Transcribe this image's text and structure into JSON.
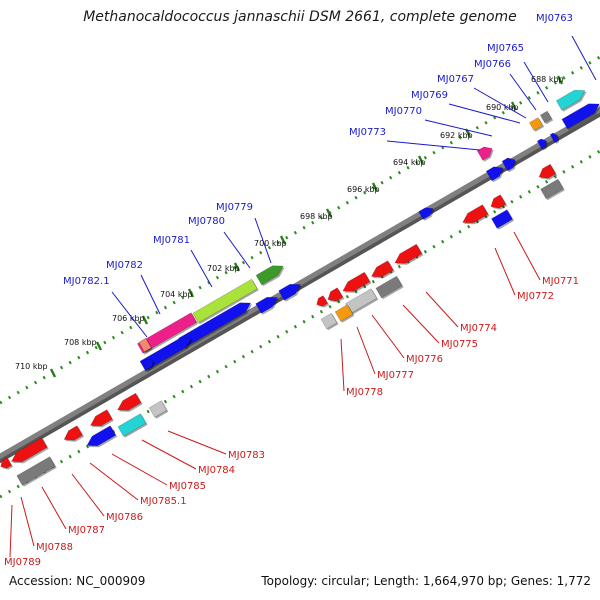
{
  "title": "Methanocaldococcus jannaschii DSM 2661, complete genome",
  "footer": {
    "accession": "Accession: NC_000909",
    "topology": "Topology: circular; Length: 1,664,970 bp; Genes: 1,772"
  },
  "colors": {
    "backbone": "#808080",
    "ruler_tick": "#2e8b22",
    "top_label": "#1a1acc",
    "bottom_label": "#cc1a1a",
    "gene_red": "#ee1111",
    "gene_blue": "#1111ee",
    "gene_magenta": "#ee1f8a",
    "gene_lime": "#a8e23a",
    "gene_green": "#3c9a2a",
    "gene_cyan": "#22d4d4",
    "gene_orange": "#f59a0e",
    "gene_gray": "#7a7a7a",
    "gene_lightgray": "#c4c4c4",
    "gene_salmon": "#f08a6a"
  },
  "ruler_labels": [
    "688 kbp",
    "690 kbp",
    "692 kbp",
    "694 kbp",
    "696 kbp",
    "698 kbp",
    "700 kbp",
    "702 kbp",
    "704 kbp",
    "706 kbp",
    "708 kbp",
    "710 kbp"
  ],
  "top_gene_labels": [
    "MJ0763",
    "MJ0765",
    "MJ0766",
    "MJ0767",
    "MJ0769",
    "MJ0770",
    "MJ0773",
    "MJ0779",
    "MJ0780",
    "MJ0781",
    "MJ0782",
    "MJ0782.1"
  ],
  "bottom_gene_labels": [
    "MJ0771",
    "MJ0772",
    "MJ0774",
    "MJ0775",
    "MJ0776",
    "MJ0777",
    "MJ0778",
    "MJ0783",
    "MJ0784",
    "MJ0785",
    "MJ0785.1",
    "MJ0786",
    "MJ0787",
    "MJ0788",
    "MJ0789"
  ]
}
